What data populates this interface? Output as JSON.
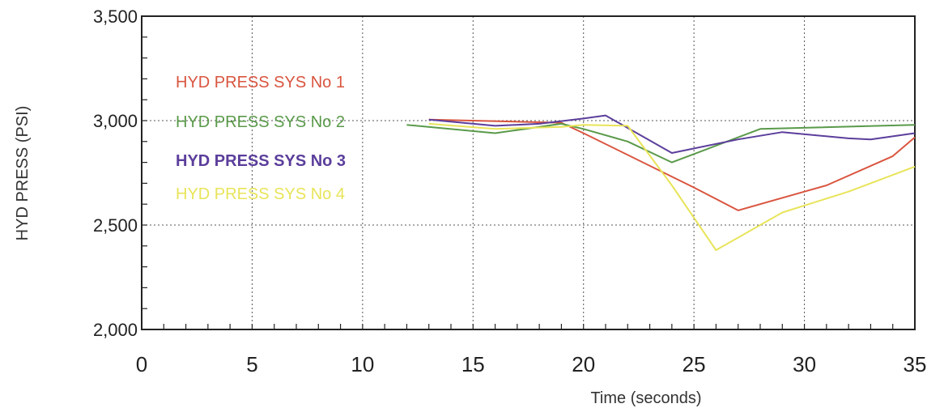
{
  "chart_data": {
    "type": "line",
    "title": "",
    "xlabel": "Time (seconds)",
    "ylabel": "HYD PRESS (PSI)",
    "xlim": [
      0,
      35
    ],
    "ylim": [
      2000,
      3500
    ],
    "x_ticks": [
      0,
      5,
      10,
      15,
      20,
      25,
      30,
      35
    ],
    "x_tick_labels": [
      "0",
      "5",
      "10",
      "15",
      "20",
      "25",
      "30",
      "35"
    ],
    "y_ticks": [
      2000,
      2500,
      3000,
      3500
    ],
    "y_tick_labels": [
      "2,000",
      "2,500",
      "3,000",
      "3,500"
    ],
    "grid": true,
    "legend_position": "upper-left inside plot",
    "series": [
      {
        "name": "HYD PRESS SYS No 1",
        "color": "#d9553f",
        "points": [
          [
            13,
            3005
          ],
          [
            19,
            2990
          ],
          [
            20,
            2940
          ],
          [
            25,
            2680
          ],
          [
            27,
            2570
          ],
          [
            30,
            2660
          ],
          [
            31,
            2690
          ],
          [
            34,
            2830
          ],
          [
            35,
            2920
          ]
        ]
      },
      {
        "name": "HYD PRESS SYS No 2",
        "color": "#5a9a4a",
        "points": [
          [
            12,
            2980
          ],
          [
            16,
            2940
          ],
          [
            19,
            2985
          ],
          [
            20,
            2960
          ],
          [
            22,
            2900
          ],
          [
            24,
            2800
          ],
          [
            25,
            2840
          ],
          [
            28,
            2960
          ],
          [
            35,
            2980
          ]
        ]
      },
      {
        "name": "HYD PRESS SYS No 3",
        "color": "#5b3e9b",
        "points": [
          [
            13,
            3005
          ],
          [
            16,
            2975
          ],
          [
            18,
            2985
          ],
          [
            20,
            3010
          ],
          [
            21,
            3025
          ],
          [
            24,
            2845
          ],
          [
            27,
            2910
          ],
          [
            29,
            2945
          ],
          [
            32,
            2915
          ],
          [
            33,
            2910
          ],
          [
            35,
            2940
          ]
        ]
      },
      {
        "name": "HYD PRESS SYS No 4",
        "color": "#e8e45a",
        "points": [
          [
            13,
            2985
          ],
          [
            16,
            2960
          ],
          [
            19,
            2970
          ],
          [
            20,
            2980
          ],
          [
            22,
            2975
          ],
          [
            24,
            2690
          ],
          [
            26,
            2380
          ],
          [
            29,
            2560
          ],
          [
            32,
            2660
          ],
          [
            35,
            2780
          ]
        ]
      }
    ]
  }
}
